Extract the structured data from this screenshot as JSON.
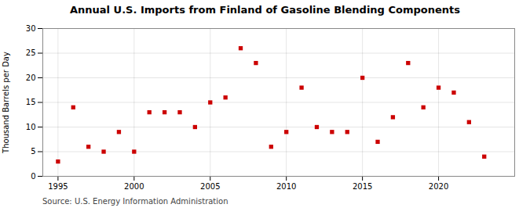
{
  "chart_data": {
    "type": "scatter",
    "title": "Annual U.S. Imports from Finland of Gasoline Blending Components",
    "ylabel": "Thousand Barrels per Day",
    "annotation": "Source: U.S. Energy Information Administration",
    "x": [
      1995,
      1996,
      1997,
      1998,
      1999,
      2000,
      2001,
      2002,
      2003,
      2004,
      2005,
      2006,
      2007,
      2008,
      2009,
      2010,
      2011,
      2012,
      2013,
      2014,
      2015,
      2016,
      2017,
      2018,
      2019,
      2020,
      2021,
      2022,
      2023
    ],
    "values": [
      3,
      14,
      6,
      5,
      9,
      5,
      13,
      13,
      13,
      10,
      15,
      16,
      26,
      23,
      6,
      9,
      18,
      10,
      9,
      9,
      20,
      7,
      12,
      23,
      14,
      18,
      17,
      11,
      4
    ],
    "color": "#cc0000",
    "marker": "square",
    "xlim": [
      1994,
      2025
    ],
    "xticks": [
      1995,
      2000,
      2005,
      2010,
      2015,
      2020
    ],
    "ylim": [
      0,
      30
    ],
    "yticks": [
      0,
      5,
      10,
      15,
      20,
      25,
      30
    ],
    "grid": true
  }
}
